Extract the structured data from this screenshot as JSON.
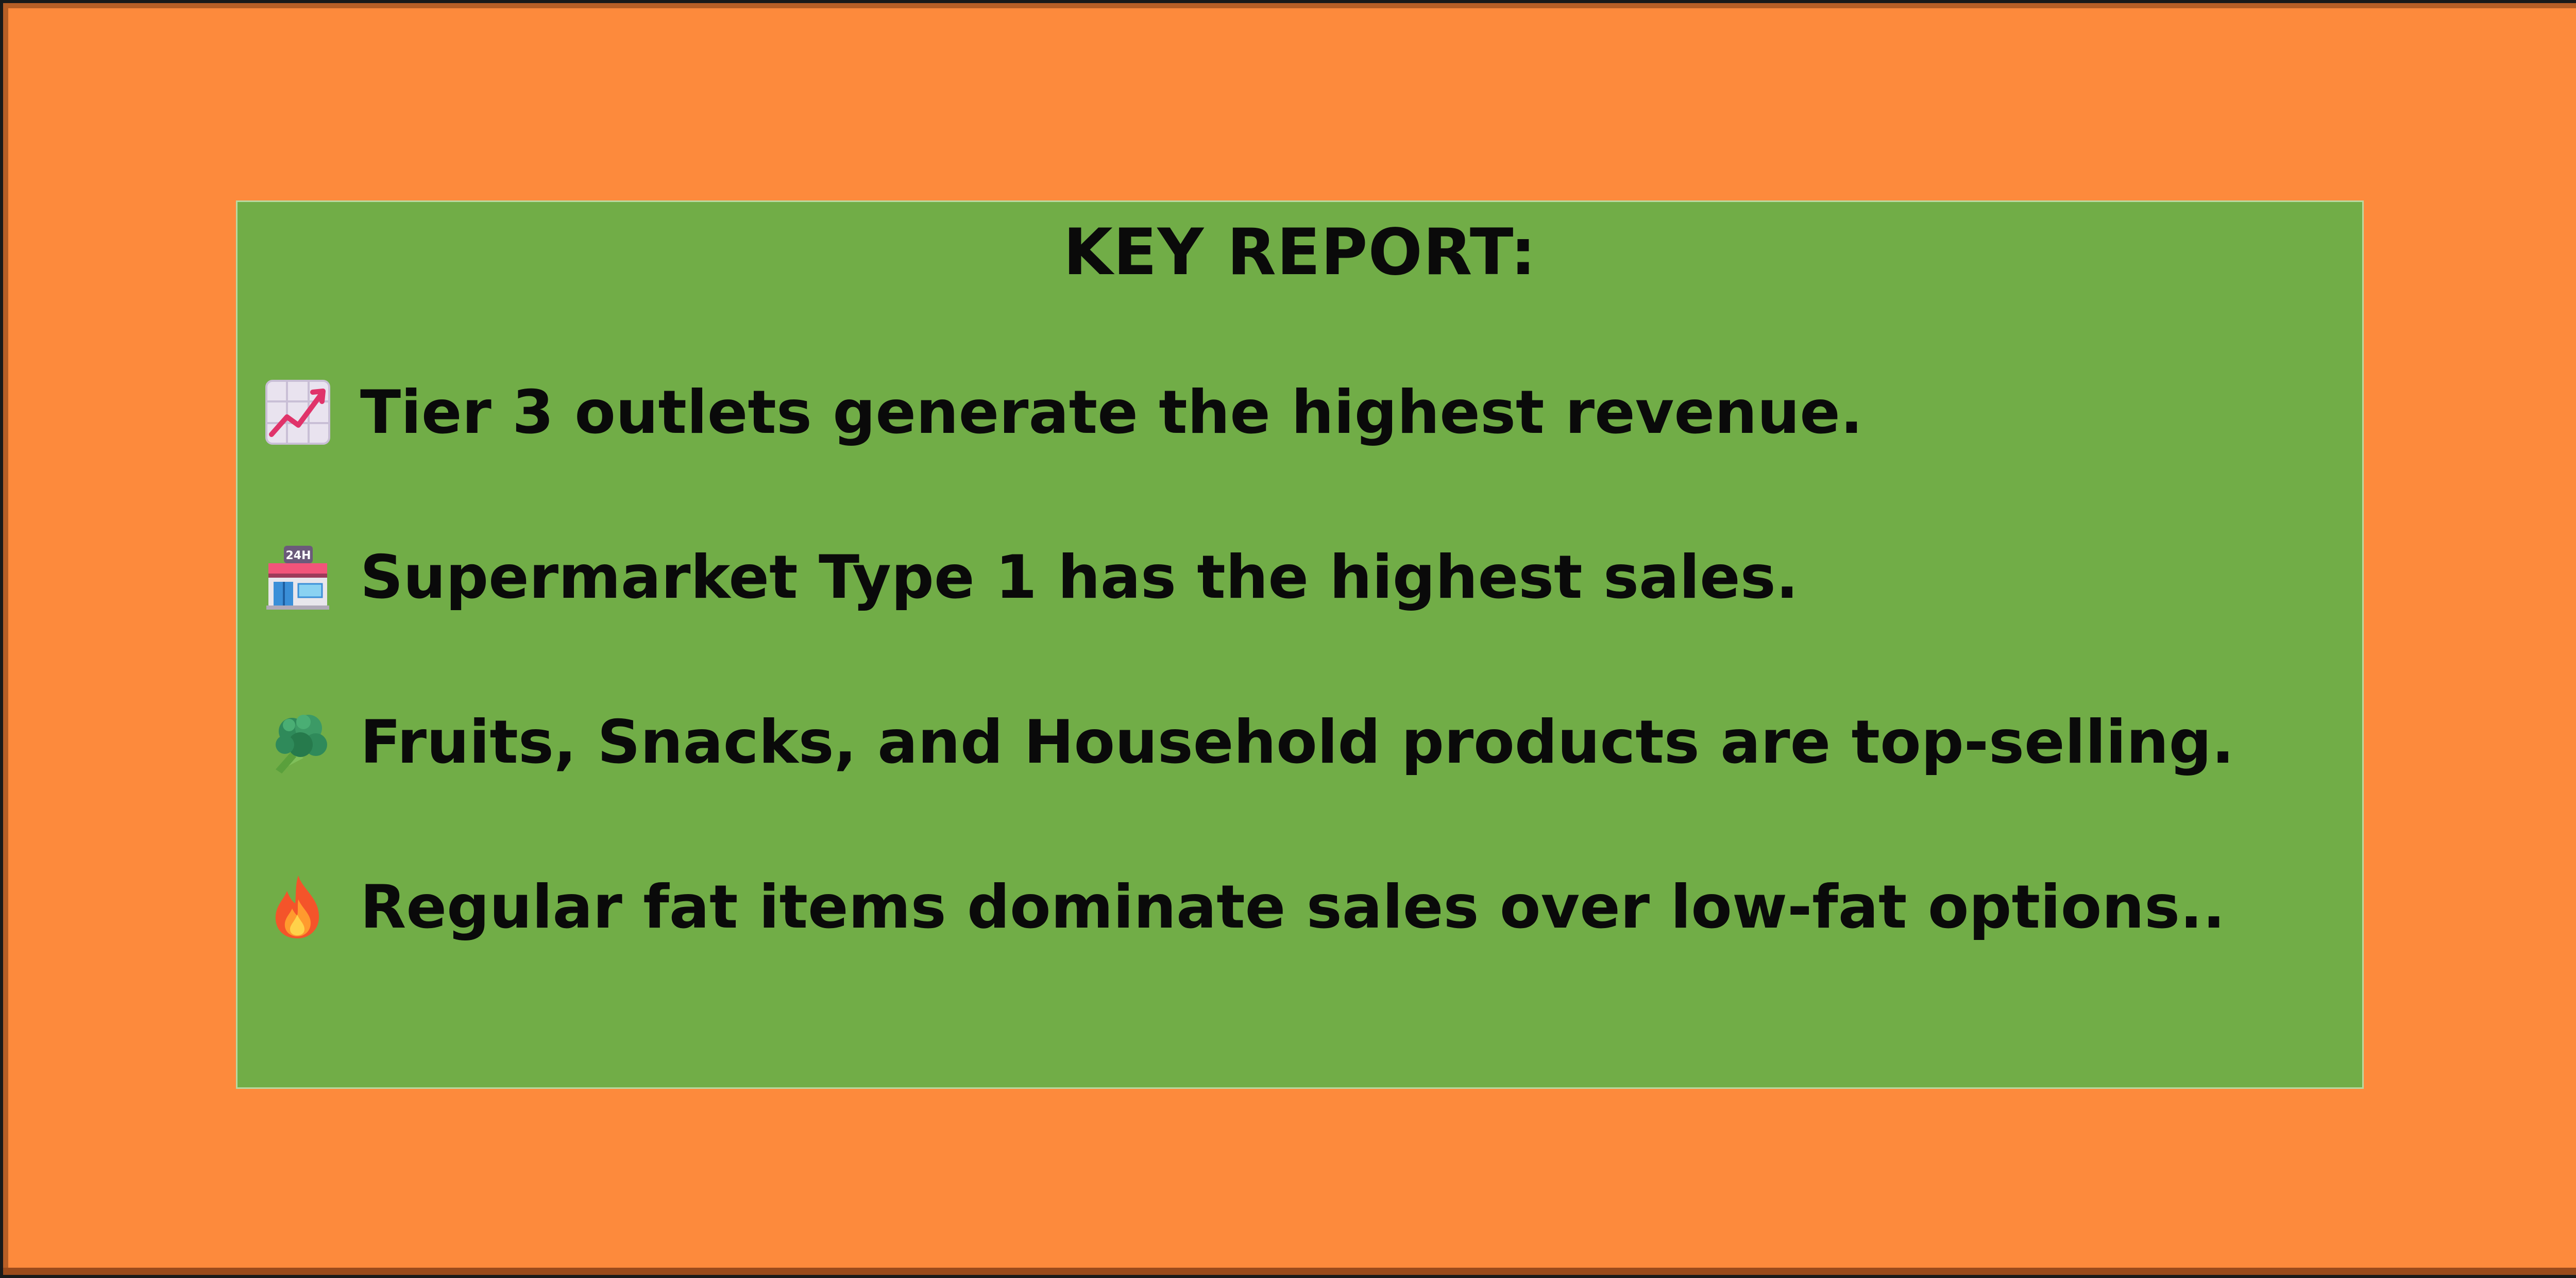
{
  "report": {
    "title": "KEY REPORT:",
    "items": [
      {
        "icon": "chart-increasing-icon",
        "text": "Tier 3 outlets generate the highest revenue."
      },
      {
        "icon": "convenience-store-icon",
        "text": "Supermarket Type 1 has the highest sales."
      },
      {
        "icon": "broccoli-icon",
        "text": "Fruits, Snacks, and Household products are top-selling."
      },
      {
        "icon": "fire-icon",
        "text": "Regular fat items dominate sales over low-fat options.."
      }
    ]
  },
  "colors": {
    "background": "#fd8a3c",
    "panel": "#71ad47",
    "text": "#0a0a0a"
  }
}
